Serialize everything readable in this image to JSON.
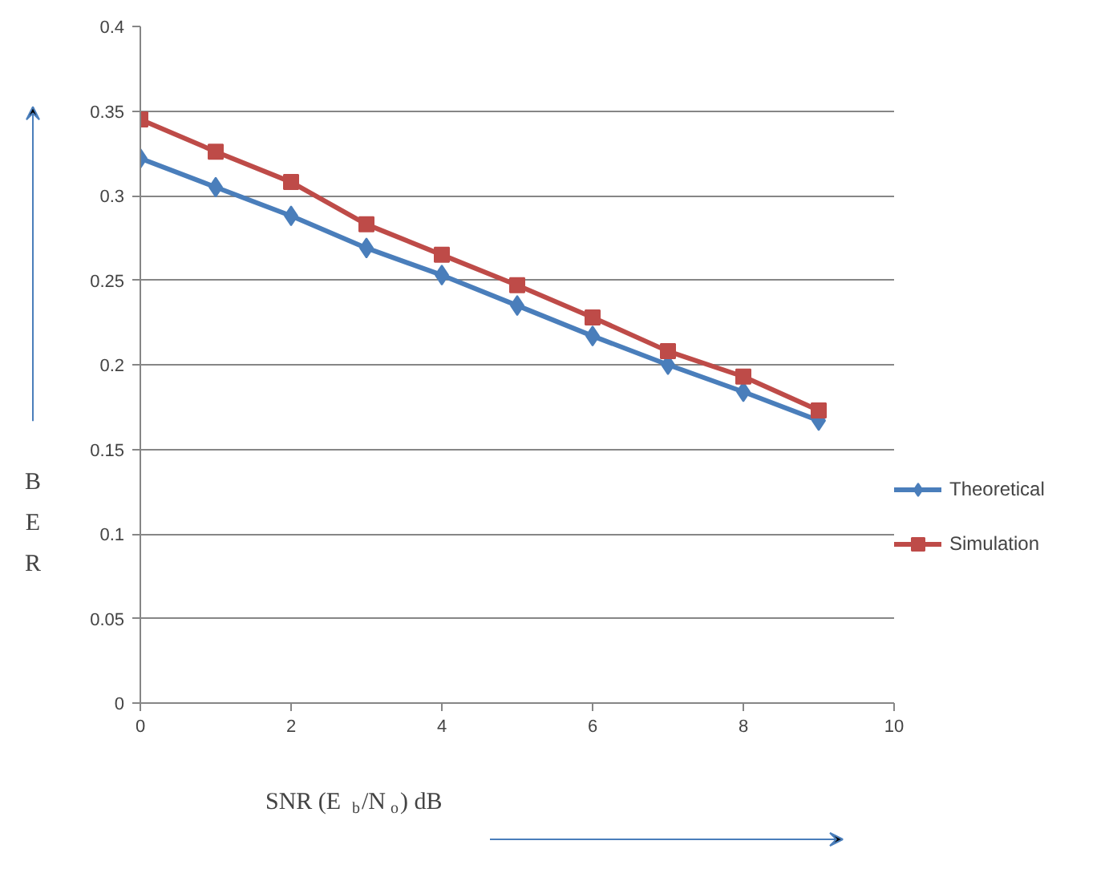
{
  "chart_data": {
    "type": "line",
    "xlabel": "SNR (E$_{b}$/N$_{o}$) dB",
    "ylabel": "B E R",
    "x": [
      0,
      1,
      2,
      3,
      4,
      5,
      6,
      7,
      8,
      9
    ],
    "series": [
      {
        "name": "Theoretical",
        "color": "#4a7ebb",
        "marker": "diamond",
        "values": [
          0.322,
          0.305,
          0.288,
          0.269,
          0.253,
          0.235,
          0.217,
          0.2,
          0.184,
          0.167
        ]
      },
      {
        "name": "Simulation",
        "color": "#be4b48",
        "marker": "square",
        "values": [
          0.345,
          0.326,
          0.308,
          0.283,
          0.265,
          0.247,
          0.228,
          0.208,
          0.193,
          0.173
        ]
      }
    ],
    "xlim": [
      0,
      10
    ],
    "xticks": [
      0,
      2,
      4,
      6,
      8,
      10
    ],
    "ylim": [
      0,
      0.4
    ],
    "yticks": [
      0,
      0.05,
      0.1,
      0.15,
      0.2,
      0.25,
      0.3,
      0.35,
      0.4
    ],
    "grid": "y",
    "legend": "right",
    "line_style": "solid"
  }
}
